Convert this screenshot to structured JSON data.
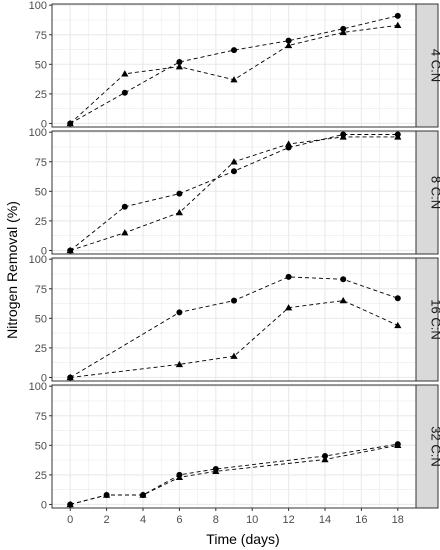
{
  "chart_data": {
    "type": "scatter",
    "xlabel": "Time (days)",
    "ylabel": "Nitrogen Removal (%)",
    "xlim": [
      -1,
      19
    ],
    "ylim": [
      -3,
      101
    ],
    "x_ticks": [
      0,
      2,
      4,
      6,
      8,
      10,
      12,
      14,
      16,
      18
    ],
    "y_ticks": [
      0,
      25,
      50,
      75,
      100
    ],
    "grid": true,
    "line_style": "dashed",
    "colors": {
      "panel_bg": "#ffffff",
      "grid": "#ebebeb",
      "strip_bg": "#d9d9d9",
      "mark": "#000000"
    },
    "panels": [
      {
        "strip": "4 C:N",
        "series": [
          {
            "marker": "circle",
            "x": [
              0,
              3,
              6,
              9,
              12,
              15,
              18
            ],
            "y": [
              0,
              26,
              52,
              62,
              70,
              80,
              91
            ]
          },
          {
            "marker": "triangle",
            "x": [
              0,
              3,
              6,
              9,
              12,
              15,
              18
            ],
            "y": [
              0,
              42,
              48,
              37,
              66,
              77,
              83
            ]
          }
        ]
      },
      {
        "strip": "8 C:N",
        "series": [
          {
            "marker": "circle",
            "x": [
              0,
              3,
              6,
              9,
              12,
              15,
              18
            ],
            "y": [
              0,
              37,
              48,
              67,
              87,
              98,
              98
            ]
          },
          {
            "marker": "triangle",
            "x": [
              0,
              3,
              6,
              9,
              12,
              15,
              18
            ],
            "y": [
              0,
              15,
              32,
              75,
              90,
              96,
              96
            ]
          }
        ]
      },
      {
        "strip": "16 C:N",
        "series": [
          {
            "marker": "circle",
            "x": [
              0,
              6,
              9,
              12,
              15,
              18
            ],
            "y": [
              0,
              55,
              65,
              85,
              83,
              67
            ]
          },
          {
            "marker": "triangle",
            "x": [
              0,
              6,
              9,
              12,
              15,
              18
            ],
            "y": [
              0,
              11,
              18,
              59,
              65,
              44
            ]
          }
        ]
      },
      {
        "strip": "32 C:N",
        "series": [
          {
            "marker": "circle",
            "x": [
              0,
              2,
              4,
              6,
              8,
              14,
              18
            ],
            "y": [
              0,
              8,
              8,
              25,
              30,
              41,
              51
            ]
          },
          {
            "marker": "triangle",
            "x": [
              0,
              2,
              4,
              6,
              8,
              14,
              18
            ],
            "y": [
              0,
              8,
              8,
              23,
              28,
              38,
              50
            ]
          }
        ]
      }
    ]
  }
}
